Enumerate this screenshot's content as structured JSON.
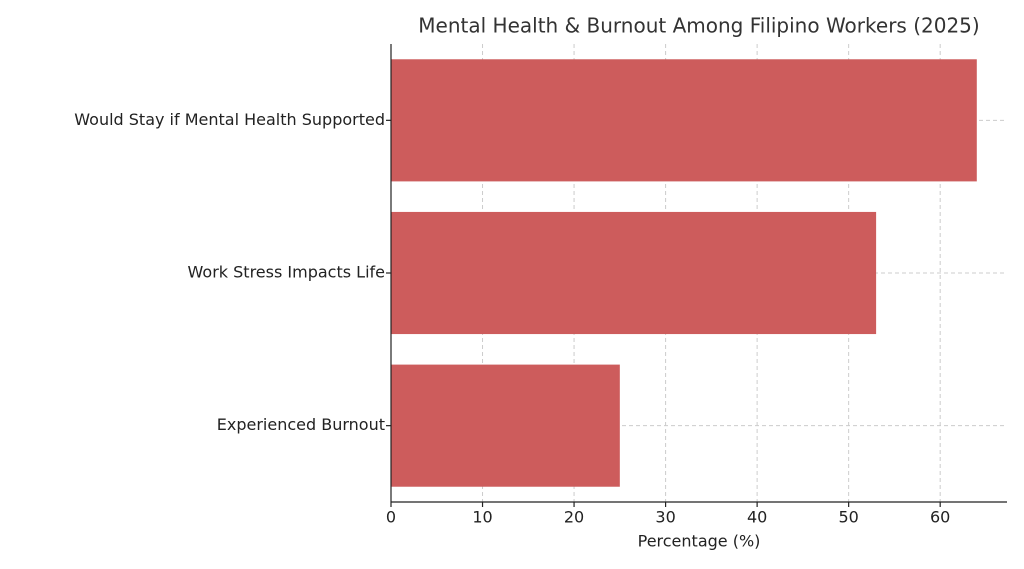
{
  "chart_data": {
    "type": "barh",
    "title": "Mental Health & Burnout Among Filipino Workers (2025)",
    "x_label": "Percentage (%)",
    "categories": [
      "Experienced Burnout",
      "Work Stress Impacts Life",
      "Would Stay if Mental Health Supported"
    ],
    "values": [
      25,
      53,
      64
    ],
    "color": "#cd5c5c",
    "xlim": [
      0,
      67.3
    ],
    "xticks": [
      0,
      10,
      20,
      30,
      40,
      50,
      60
    ],
    "grid": true
  }
}
